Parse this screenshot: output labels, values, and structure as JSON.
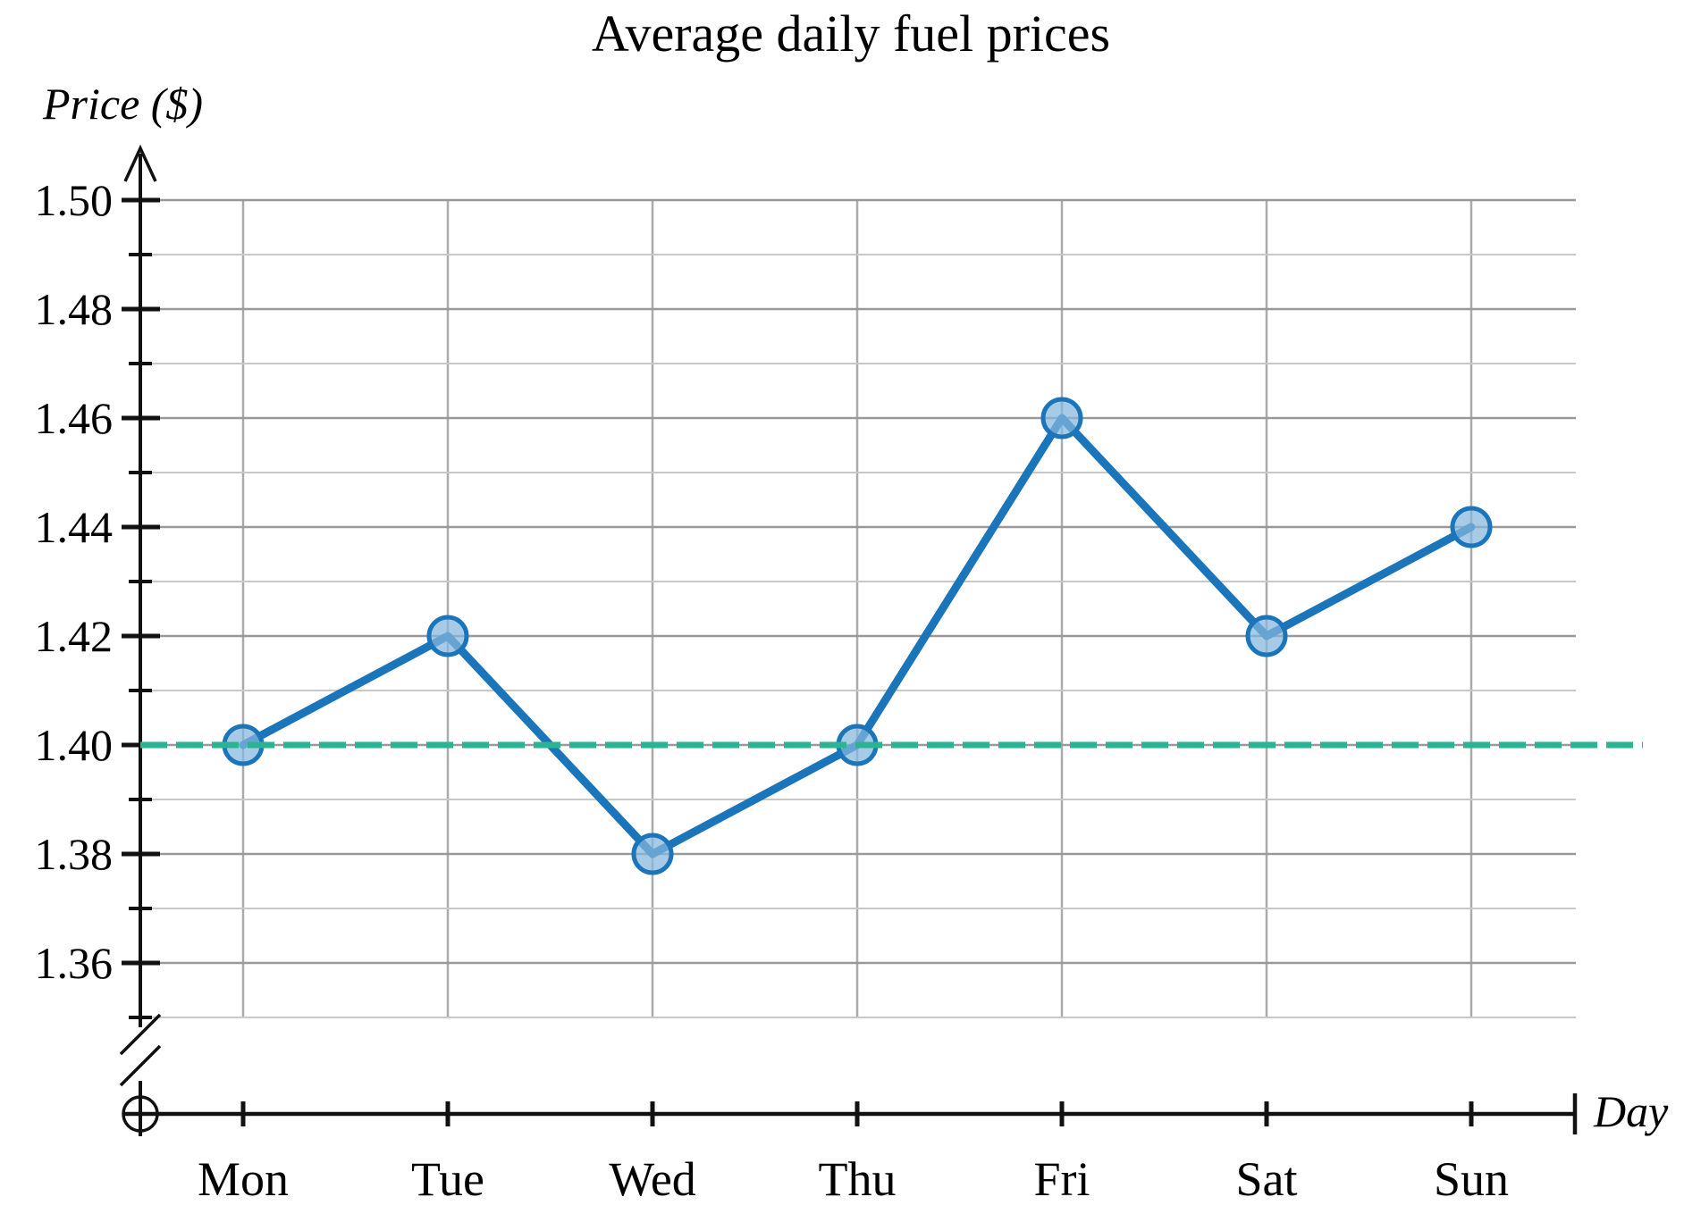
{
  "title": "Average daily fuel prices",
  "y_axis_label": "Price ($)",
  "x_axis_label": "Day",
  "chart_data": {
    "type": "line",
    "title": "Average daily fuel prices",
    "xlabel": "Day",
    "ylabel": "Price ($)",
    "categories": [
      "Mon",
      "Tue",
      "Wed",
      "Thu",
      "Fri",
      "Sat",
      "Sun"
    ],
    "series": [
      {
        "name": "Average daily fuel price",
        "values": [
          1.4,
          1.42,
          1.38,
          1.4,
          1.46,
          1.42,
          1.44
        ]
      }
    ],
    "reference_line": {
      "value": 1.4,
      "style": "dashed"
    },
    "ylim": [
      1.35,
      1.5
    ],
    "y_major_ticks": [
      1.5,
      1.48,
      1.46,
      1.44,
      1.42,
      1.4,
      1.38,
      1.36
    ],
    "y_tick_labels": [
      "1.50",
      "1.48",
      "1.46",
      "1.44",
      "1.42",
      "1.40",
      "1.38",
      "1.36"
    ],
    "y_minor_step": 0.01,
    "grid": true,
    "axis_break": true,
    "legend": "none"
  },
  "colors": {
    "line": "#1b75ba",
    "marker_fill": "#85b7dd",
    "marker_stroke": "#1b75ba",
    "reference": "#2bb491",
    "grid_major": "#999999",
    "grid_minor": "#c8c8c8",
    "grid_vertical": "#ababab",
    "axis": "#111111"
  }
}
